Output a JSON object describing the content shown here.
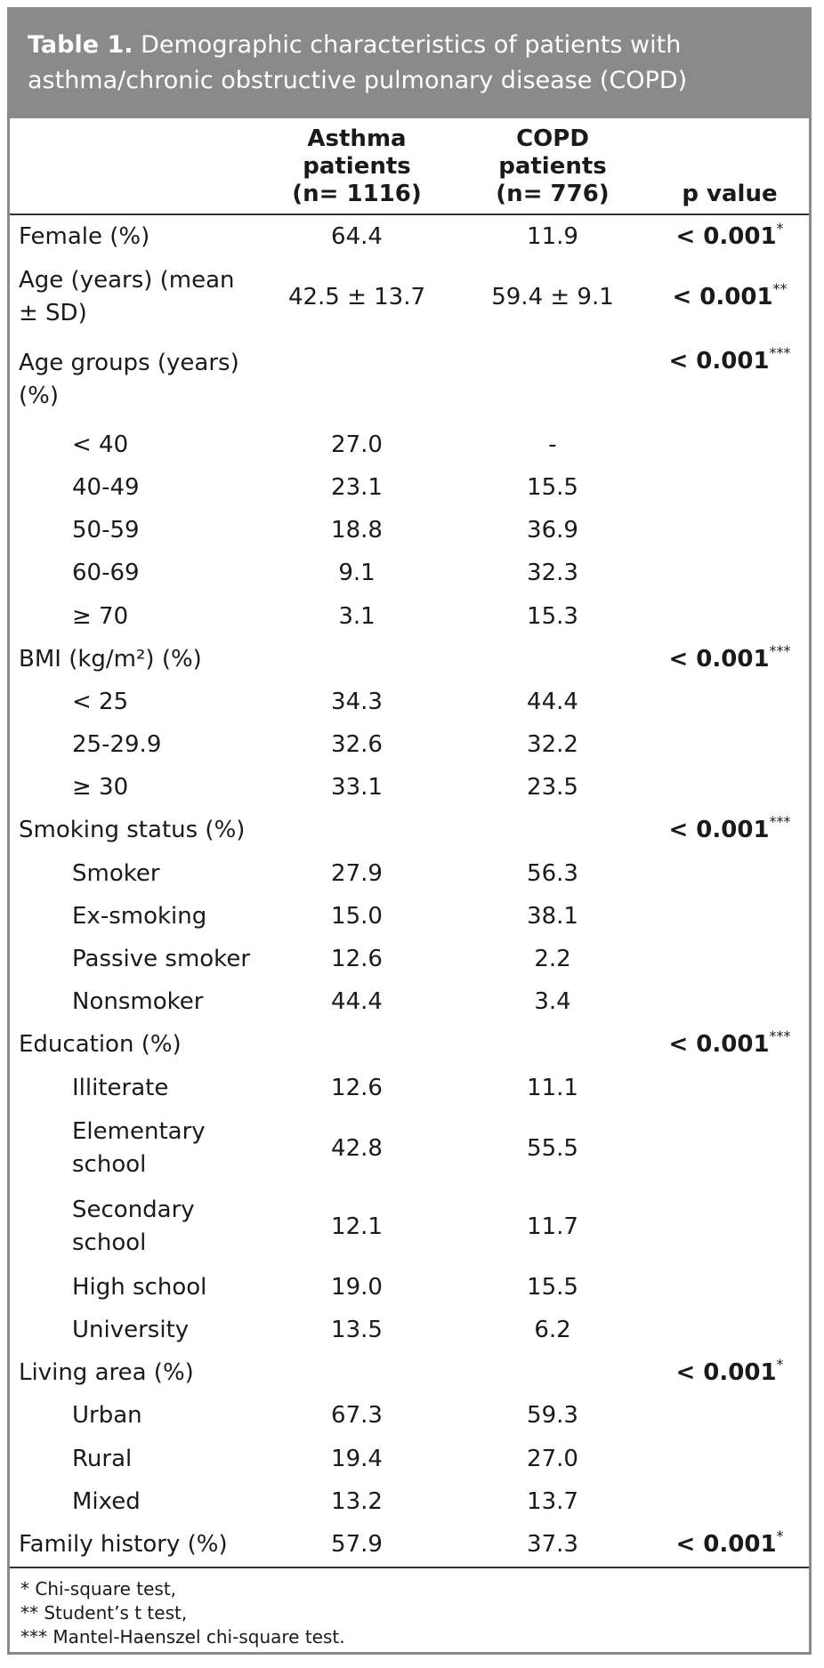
{
  "table_title": {
    "label": "Table 1.",
    "text": "Demographic characteristics of patients with asthma/chronic obstructive pulmonary disease (COPD)"
  },
  "columns": [
    {
      "line1": "Asthma",
      "line2": "patients",
      "line3": "(n= 1116)"
    },
    {
      "line1": "COPD",
      "line2": "patients",
      "line3": "(n= 776)"
    },
    {
      "line1": "p value"
    }
  ],
  "rows": [
    {
      "label": "Female (%)",
      "asthma": "64.4",
      "copd": "11.9",
      "p": "< 0.001",
      "sup": "*"
    },
    {
      "label": "Age (years) (mean ± SD)",
      "asthma": "42.5 ± 13.7",
      "copd": "59.4 ± 9.1",
      "p": "< 0.001",
      "sup": "**",
      "two_line": true
    },
    {
      "label": "Age groups (years) (%)",
      "p": "< 0.001",
      "sup": "***",
      "two_line": true,
      "p_top": true
    },
    {
      "label": "< 40",
      "asthma": "27.0",
      "copd": "-",
      "indent": true
    },
    {
      "label": "40-49",
      "asthma": "23.1",
      "copd": "15.5",
      "indent": true
    },
    {
      "label": "50-59",
      "asthma": "18.8",
      "copd": "36.9",
      "indent": true
    },
    {
      "label": "60-69",
      "asthma": "9.1",
      "copd": "32.3",
      "indent": true
    },
    {
      "label": "≥ 70",
      "asthma": "3.1",
      "copd": "15.3",
      "indent": true
    },
    {
      "label": "BMI (kg/m²) (%)",
      "p": "< 0.001",
      "sup": "***"
    },
    {
      "label": "< 25",
      "asthma": "34.3",
      "copd": "44.4",
      "indent": true
    },
    {
      "label": "25-29.9",
      "asthma": "32.6",
      "copd": "32.2",
      "indent": true
    },
    {
      "label": "≥ 30",
      "asthma": "33.1",
      "copd": "23.5",
      "indent": true
    },
    {
      "label": "Smoking status (%)",
      "p": "< 0.001",
      "sup": "***"
    },
    {
      "label": "Smoker",
      "asthma": "27.9",
      "copd": "56.3",
      "indent": true
    },
    {
      "label": "Ex-smoking",
      "asthma": "15.0",
      "copd": "38.1",
      "indent": true
    },
    {
      "label": "Passive smoker",
      "asthma": "12.6",
      "copd": "2.2",
      "indent": true
    },
    {
      "label": "Nonsmoker",
      "asthma": "44.4",
      "copd": "3.4",
      "indent": true
    },
    {
      "label": "Education (%)",
      "p": "< 0.001",
      "sup": "***"
    },
    {
      "label": "Illiterate",
      "asthma": "12.6",
      "copd": "11.1",
      "indent": true
    },
    {
      "label": "Elementary school",
      "asthma": "42.8",
      "copd": "55.5",
      "indent": true,
      "two_line": true
    },
    {
      "label": "Secondary school",
      "asthma": "12.1",
      "copd": "11.7",
      "indent": true,
      "two_line": true
    },
    {
      "label": "High school",
      "asthma": "19.0",
      "copd": "15.5",
      "indent": true
    },
    {
      "label": "University",
      "asthma": "13.5",
      "copd": "6.2",
      "indent": true
    },
    {
      "label": "Living area (%)",
      "p": "< 0.001",
      "sup": "*"
    },
    {
      "label": "Urban",
      "asthma": "67.3",
      "copd": "59.3",
      "indent": true
    },
    {
      "label": "Rural",
      "asthma": "19.4",
      "copd": "27.0",
      "indent": true
    },
    {
      "label": "Mixed",
      "asthma": "13.2",
      "copd": "13.7",
      "indent": true
    },
    {
      "label": "Family history (%)",
      "asthma": "57.9",
      "copd": "37.3",
      "p": "< 0.001",
      "sup": "*"
    }
  ],
  "footnotes": [
    "* Chi-square test,",
    "** Student’s t test,",
    "*** Mantel-Haenszel chi-square test."
  ]
}
